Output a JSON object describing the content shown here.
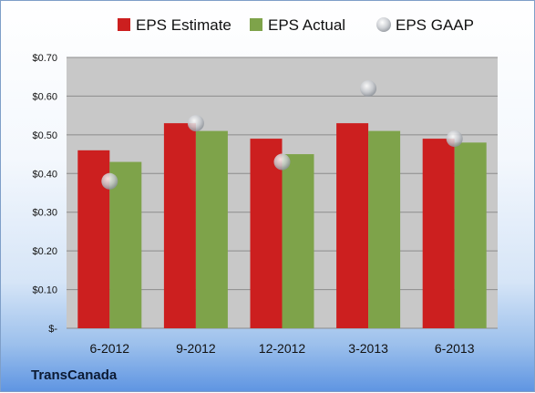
{
  "chart_data": {
    "type": "bar",
    "categories": [
      "6-2012",
      "9-2012",
      "12-2012",
      "3-2013",
      "6-2013"
    ],
    "series": [
      {
        "name": "EPS Estimate",
        "kind": "bar",
        "color": "#cc1f1f",
        "values": [
          0.46,
          0.53,
          0.49,
          0.53,
          0.49
        ]
      },
      {
        "name": "EPS Actual",
        "kind": "bar",
        "color": "#7ea34a",
        "values": [
          0.43,
          0.51,
          0.45,
          0.51,
          0.48
        ]
      },
      {
        "name": "EPS GAAP",
        "kind": "scatter",
        "color": "#c9cdd3",
        "values": [
          0.38,
          0.53,
          0.43,
          0.62,
          0.49
        ]
      }
    ],
    "ylim": [
      0,
      0.7
    ],
    "yticks": [
      0,
      0.1,
      0.2,
      0.3,
      0.4,
      0.5,
      0.6,
      0.7
    ],
    "ytick_labels": [
      "$-",
      "$0.10",
      "$0.20",
      "$0.30",
      "$0.40",
      "$0.50",
      "$0.60",
      "$0.70"
    ],
    "grid": true,
    "legend_position": "top",
    "title": "",
    "xlabel": "",
    "ylabel": ""
  },
  "footer": {
    "company": "TransCanada"
  }
}
